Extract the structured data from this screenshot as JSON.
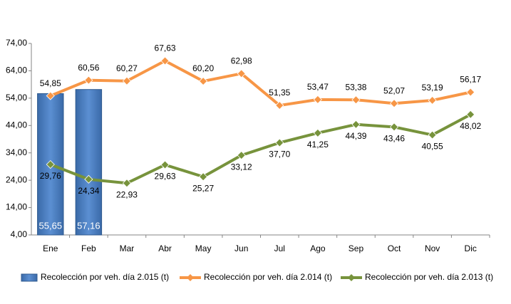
{
  "chart_data": {
    "type": "bar-line",
    "categories": [
      "Ene",
      "Feb",
      "Mar",
      "Abr",
      "May",
      "Jun",
      "Jul",
      "Ago",
      "Sep",
      "Oct",
      "Nov",
      "Dic"
    ],
    "series": [
      {
        "name": "Recolección por veh. día 2.015 (t)",
        "type": "bar",
        "color": "#4f81bd",
        "values": [
          55.65,
          57.16,
          null,
          null,
          null,
          null,
          null,
          null,
          null,
          null,
          null,
          null
        ],
        "value_labels": [
          "55,65",
          "57,16",
          null,
          null,
          null,
          null,
          null,
          null,
          null,
          null,
          null,
          null
        ]
      },
      {
        "name": "Recolección por veh. día 2.014 (t)",
        "type": "line",
        "color": "#f79646",
        "values": [
          54.85,
          60.56,
          60.27,
          67.63,
          60.2,
          62.98,
          51.35,
          53.47,
          53.38,
          52.07,
          53.19,
          56.17
        ],
        "value_labels": [
          "54,85",
          "60,56",
          "60,27",
          "67,63",
          "60,20",
          "62,98",
          "51,35",
          "53,47",
          "53,38",
          "52,07",
          "53,19",
          "56,17"
        ]
      },
      {
        "name": "Recolección por veh. día 2.013 (t)",
        "type": "line",
        "color": "#77933c",
        "values": [
          29.76,
          24.34,
          22.93,
          29.63,
          25.27,
          33.12,
          37.7,
          41.25,
          44.39,
          43.46,
          40.55,
          48.02
        ],
        "value_labels": [
          "29,76",
          "24,34",
          "22,93",
          "29,63",
          "25,27",
          "33,12",
          "37,70",
          "41,25",
          "44,39",
          "43,46",
          "40,55",
          "48,02"
        ]
      }
    ],
    "ylim": [
      4,
      74
    ],
    "yticks": [
      {
        "value": 4,
        "label": "4,00"
      },
      {
        "value": 14,
        "label": "14,00"
      },
      {
        "value": 24,
        "label": "24,00"
      },
      {
        "value": 34,
        "label": "34,00"
      },
      {
        "value": 44,
        "label": "44,00"
      },
      {
        "value": 54,
        "label": "54,00"
      },
      {
        "value": 64,
        "label": "64,00"
      },
      {
        "value": 74,
        "label": "74,00"
      }
    ],
    "grid": false,
    "legend": "bottom"
  }
}
